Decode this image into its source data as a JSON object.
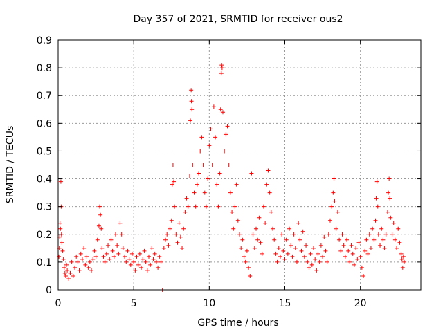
{
  "chart_data": {
    "type": "scatter",
    "title": "Day 357 of 2021, SRMTID for receiver ous2",
    "xlabel": "GPS time / hours",
    "ylabel": "SRMTID / TECUs",
    "xlim": [
      0,
      24
    ],
    "ylim": [
      0,
      0.9
    ],
    "x_ticks": [
      0,
      5,
      10,
      15,
      20
    ],
    "x_tick_labels": [
      "0",
      "5",
      "10",
      "15",
      "20"
    ],
    "y_ticks": [
      0,
      0.1,
      0.2,
      0.3,
      0.4,
      0.5,
      0.6,
      0.7,
      0.8,
      0.9
    ],
    "y_tick_labels": [
      "0",
      "0.1",
      "0.2",
      "0.3",
      "0.4",
      "0.5",
      "0.6",
      "0.7",
      "0.8",
      "0.9"
    ],
    "grid": true,
    "marker": "+",
    "color": "#ff0000",
    "series": [
      {
        "name": "SRMTID ous2",
        "points": [
          [
            0.05,
            0.12
          ],
          [
            0.08,
            0.15
          ],
          [
            0.1,
            0.19
          ],
          [
            0.12,
            0.24
          ],
          [
            0.15,
            0.22
          ],
          [
            0.18,
            0.39
          ],
          [
            0.2,
            0.3
          ],
          [
            0.22,
            0.2
          ],
          [
            0.25,
            0.17
          ],
          [
            0.3,
            0.14
          ],
          [
            0.35,
            0.11
          ],
          [
            0.4,
            0.08
          ],
          [
            0.45,
            0.06
          ],
          [
            0.5,
            0.05
          ],
          [
            0.55,
            0.09
          ],
          [
            0.6,
            0.07
          ],
          [
            0.7,
            0.04
          ],
          [
            0.8,
            0.06
          ],
          [
            0.9,
            0.1
          ],
          [
            1.0,
            0.05
          ],
          [
            1.1,
            0.08
          ],
          [
            1.2,
            0.12
          ],
          [
            1.3,
            0.1
          ],
          [
            1.4,
            0.07
          ],
          [
            1.5,
            0.13
          ],
          [
            1.6,
            0.11
          ],
          [
            1.7,
            0.15
          ],
          [
            1.8,
            0.09
          ],
          [
            1.9,
            0.12
          ],
          [
            2.0,
            0.08
          ],
          [
            2.1,
            0.1
          ],
          [
            2.2,
            0.07
          ],
          [
            2.3,
            0.11
          ],
          [
            2.4,
            0.14
          ],
          [
            2.5,
            0.12
          ],
          [
            2.6,
            0.18
          ],
          [
            2.7,
            0.23
          ],
          [
            2.75,
            0.3
          ],
          [
            2.8,
            0.27
          ],
          [
            2.85,
            0.22
          ],
          [
            2.9,
            0.15
          ],
          [
            3.0,
            0.12
          ],
          [
            3.1,
            0.1
          ],
          [
            3.2,
            0.13
          ],
          [
            3.3,
            0.16
          ],
          [
            3.4,
            0.11
          ],
          [
            3.5,
            0.18
          ],
          [
            3.6,
            0.14
          ],
          [
            3.7,
            0.12
          ],
          [
            3.8,
            0.2
          ],
          [
            3.9,
            0.16
          ],
          [
            4.0,
            0.13
          ],
          [
            4.1,
            0.24
          ],
          [
            4.2,
            0.2
          ],
          [
            4.3,
            0.15
          ],
          [
            4.4,
            0.12
          ],
          [
            4.5,
            0.1
          ],
          [
            4.6,
            0.14
          ],
          [
            4.7,
            0.11
          ],
          [
            4.8,
            0.09
          ],
          [
            4.9,
            0.13
          ],
          [
            5.0,
            0.1
          ],
          [
            5.1,
            0.07
          ],
          [
            5.2,
            0.12
          ],
          [
            5.3,
            0.09
          ],
          [
            5.4,
            0.13
          ],
          [
            5.5,
            0.08
          ],
          [
            5.6,
            0.11
          ],
          [
            5.7,
            0.14
          ],
          [
            5.8,
            0.1
          ],
          [
            5.9,
            0.07
          ],
          [
            6.0,
            0.12
          ],
          [
            6.1,
            0.09
          ],
          [
            6.2,
            0.15
          ],
          [
            6.3,
            0.11
          ],
          [
            6.4,
            0.13
          ],
          [
            6.5,
            0.1
          ],
          [
            6.6,
            0.08
          ],
          [
            6.7,
            0.12
          ],
          [
            6.8,
            0.1
          ],
          [
            6.9,
            0.0
          ],
          [
            7.0,
            0.15
          ],
          [
            7.1,
            0.18
          ],
          [
            7.2,
            0.2
          ],
          [
            7.3,
            0.16
          ],
          [
            7.4,
            0.22
          ],
          [
            7.5,
            0.25
          ],
          [
            7.55,
            0.38
          ],
          [
            7.6,
            0.45
          ],
          [
            7.65,
            0.39
          ],
          [
            7.7,
            0.3
          ],
          [
            7.8,
            0.2
          ],
          [
            7.9,
            0.17
          ],
          [
            8.0,
            0.24
          ],
          [
            8.1,
            0.19
          ],
          [
            8.2,
            0.15
          ],
          [
            8.3,
            0.22
          ],
          [
            8.4,
            0.28
          ],
          [
            8.5,
            0.33
          ],
          [
            8.6,
            0.3
          ],
          [
            8.7,
            0.41
          ],
          [
            8.75,
            0.61
          ],
          [
            8.8,
            0.72
          ],
          [
            8.82,
            0.68
          ],
          [
            8.85,
            0.65
          ],
          [
            8.9,
            0.45
          ],
          [
            9.0,
            0.35
          ],
          [
            9.1,
            0.3
          ],
          [
            9.2,
            0.38
          ],
          [
            9.3,
            0.42
          ],
          [
            9.4,
            0.5
          ],
          [
            9.5,
            0.55
          ],
          [
            9.6,
            0.45
          ],
          [
            9.7,
            0.35
          ],
          [
            9.8,
            0.3
          ],
          [
            9.9,
            0.4
          ],
          [
            10.0,
            0.52
          ],
          [
            10.1,
            0.58
          ],
          [
            10.2,
            0.45
          ],
          [
            10.3,
            0.66
          ],
          [
            10.4,
            0.55
          ],
          [
            10.5,
            0.38
          ],
          [
            10.6,
            0.3
          ],
          [
            10.7,
            0.42
          ],
          [
            10.75,
            0.65
          ],
          [
            10.8,
            0.78
          ],
          [
            10.82,
            0.81
          ],
          [
            10.85,
            0.8
          ],
          [
            10.9,
            0.64
          ],
          [
            11.0,
            0.5
          ],
          [
            11.1,
            0.56
          ],
          [
            11.2,
            0.59
          ],
          [
            11.3,
            0.45
          ],
          [
            11.4,
            0.35
          ],
          [
            11.5,
            0.28
          ],
          [
            11.6,
            0.22
          ],
          [
            11.7,
            0.3
          ],
          [
            11.8,
            0.38
          ],
          [
            11.9,
            0.25
          ],
          [
            12.0,
            0.2
          ],
          [
            12.1,
            0.15
          ],
          [
            12.2,
            0.18
          ],
          [
            12.3,
            0.12
          ],
          [
            12.4,
            0.1
          ],
          [
            12.5,
            0.14
          ],
          [
            12.6,
            0.08
          ],
          [
            12.7,
            0.05
          ],
          [
            12.8,
            0.42
          ],
          [
            12.9,
            0.2
          ],
          [
            13.0,
            0.15
          ],
          [
            13.1,
            0.22
          ],
          [
            13.2,
            0.18
          ],
          [
            13.3,
            0.26
          ],
          [
            13.4,
            0.17
          ],
          [
            13.5,
            0.13
          ],
          [
            13.6,
            0.3
          ],
          [
            13.7,
            0.24
          ],
          [
            13.8,
            0.38
          ],
          [
            13.9,
            0.43
          ],
          [
            14.0,
            0.35
          ],
          [
            14.1,
            0.28
          ],
          [
            14.2,
            0.22
          ],
          [
            14.3,
            0.18
          ],
          [
            14.4,
            0.13
          ],
          [
            14.5,
            0.1
          ],
          [
            14.6,
            0.15
          ],
          [
            14.7,
            0.12
          ],
          [
            14.8,
            0.2
          ],
          [
            14.9,
            0.14
          ],
          [
            15.0,
            0.11
          ],
          [
            15.1,
            0.18
          ],
          [
            15.2,
            0.13
          ],
          [
            15.3,
            0.22
          ],
          [
            15.4,
            0.16
          ],
          [
            15.5,
            0.12
          ],
          [
            15.6,
            0.2
          ],
          [
            15.7,
            0.15
          ],
          [
            15.8,
            0.1
          ],
          [
            15.9,
            0.24
          ],
          [
            16.0,
            0.18
          ],
          [
            16.1,
            0.14
          ],
          [
            16.2,
            0.21
          ],
          [
            16.3,
            0.12
          ],
          [
            16.4,
            0.16
          ],
          [
            16.5,
            0.1
          ],
          [
            16.6,
            0.08
          ],
          [
            16.7,
            0.13
          ],
          [
            16.8,
            0.09
          ],
          [
            16.9,
            0.15
          ],
          [
            17.0,
            0.11
          ],
          [
            17.1,
            0.07
          ],
          [
            17.2,
            0.13
          ],
          [
            17.3,
            0.1
          ],
          [
            17.4,
            0.16
          ],
          [
            17.5,
            0.12
          ],
          [
            17.6,
            0.19
          ],
          [
            17.7,
            0.14
          ],
          [
            17.8,
            0.1
          ],
          [
            17.9,
            0.2
          ],
          [
            18.0,
            0.25
          ],
          [
            18.1,
            0.3
          ],
          [
            18.2,
            0.35
          ],
          [
            18.25,
            0.4
          ],
          [
            18.3,
            0.32
          ],
          [
            18.4,
            0.22
          ],
          [
            18.5,
            0.28
          ],
          [
            18.6,
            0.18
          ],
          [
            18.7,
            0.14
          ],
          [
            18.8,
            0.2
          ],
          [
            18.9,
            0.16
          ],
          [
            19.0,
            0.12
          ],
          [
            19.1,
            0.18
          ],
          [
            19.2,
            0.14
          ],
          [
            19.3,
            0.1
          ],
          [
            19.4,
            0.16
          ],
          [
            19.5,
            0.13
          ],
          [
            19.6,
            0.09
          ],
          [
            19.7,
            0.15
          ],
          [
            19.8,
            0.11
          ],
          [
            19.9,
            0.17
          ],
          [
            20.0,
            0.12
          ],
          [
            20.1,
            0.08
          ],
          [
            20.2,
            0.05
          ],
          [
            20.3,
            0.14
          ],
          [
            20.4,
            0.18
          ],
          [
            20.5,
            0.13
          ],
          [
            20.6,
            0.2
          ],
          [
            20.7,
            0.15
          ],
          [
            20.8,
            0.22
          ],
          [
            20.9,
            0.18
          ],
          [
            21.0,
            0.25
          ],
          [
            21.05,
            0.33
          ],
          [
            21.1,
            0.39
          ],
          [
            21.15,
            0.3
          ],
          [
            21.2,
            0.2
          ],
          [
            21.3,
            0.16
          ],
          [
            21.4,
            0.22
          ],
          [
            21.5,
            0.18
          ],
          [
            21.6,
            0.15
          ],
          [
            21.7,
            0.2
          ],
          [
            21.8,
            0.28
          ],
          [
            21.85,
            0.35
          ],
          [
            21.9,
            0.4
          ],
          [
            21.95,
            0.33
          ],
          [
            22.0,
            0.26
          ],
          [
            22.1,
            0.2
          ],
          [
            22.2,
            0.24
          ],
          [
            22.3,
            0.18
          ],
          [
            22.4,
            0.15
          ],
          [
            22.5,
            0.22
          ],
          [
            22.6,
            0.17
          ],
          [
            22.7,
            0.13
          ],
          [
            22.75,
            0.11
          ],
          [
            22.8,
            0.08
          ],
          [
            22.85,
            0.12
          ],
          [
            22.9,
            0.1
          ]
        ]
      }
    ]
  }
}
